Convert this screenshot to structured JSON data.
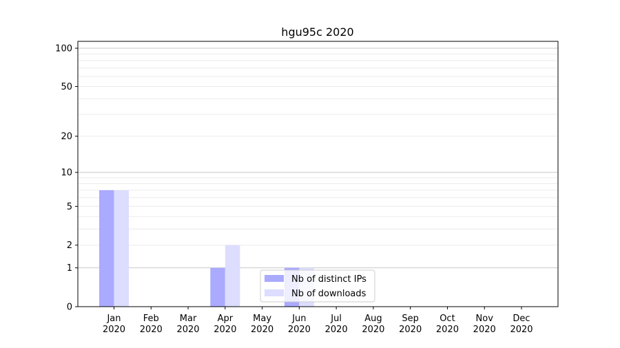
{
  "chart_data": {
    "type": "bar",
    "title": "hgu95c 2020",
    "xlabel": "",
    "ylabel": "",
    "categories": [
      "Jan\n2020",
      "Feb\n2020",
      "Mar\n2020",
      "Apr\n2020",
      "May\n2020",
      "Jun\n2020",
      "Jul\n2020",
      "Aug\n2020",
      "Sep\n2020",
      "Oct\n2020",
      "Nov\n2020",
      "Dec\n2020"
    ],
    "series": [
      {
        "name": "Nb of distinct IPs",
        "color": "#aaaaff",
        "values": [
          7,
          0,
          0,
          1,
          0,
          1,
          0,
          0,
          0,
          0,
          0,
          0
        ]
      },
      {
        "name": "Nb of downloads",
        "color": "#ddddff",
        "values": [
          7,
          0,
          0,
          2,
          0,
          1,
          0,
          0,
          0,
          0,
          0,
          0
        ]
      }
    ],
    "yscale": "symlog",
    "yticks": [
      0,
      1,
      2,
      5,
      10,
      20,
      50,
      100
    ],
    "ylim": [
      0,
      116
    ],
    "grid": true,
    "legend_position": "bottom-center"
  }
}
